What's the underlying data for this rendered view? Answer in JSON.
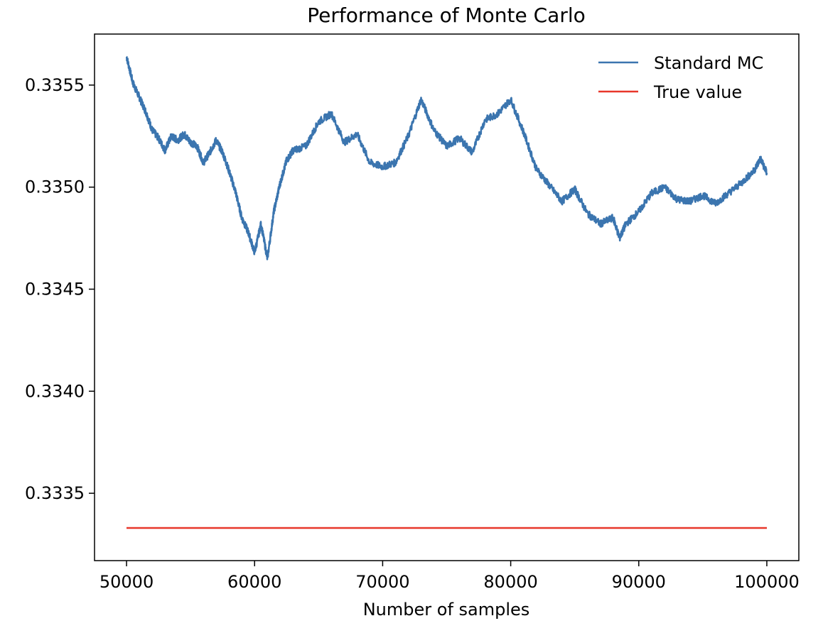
{
  "chart_data": {
    "type": "line",
    "title": "Performance of Monte Carlo",
    "xlabel": "Number of samples",
    "ylabel": "",
    "xlim": [
      47500,
      102500
    ],
    "ylim": [
      0.33317,
      0.33575
    ],
    "x_ticks": [
      50000,
      60000,
      70000,
      80000,
      90000,
      100000
    ],
    "x_tick_labels": [
      "50000",
      "60000",
      "70000",
      "80000",
      "90000",
      "100000"
    ],
    "y_ticks": [
      0.3335,
      0.334,
      0.3345,
      0.335,
      0.3355
    ],
    "y_tick_labels": [
      "0.3335",
      "0.3340",
      "0.3345",
      "0.3350",
      "0.3355"
    ],
    "grid": false,
    "legend": {
      "placement": "top-right",
      "entries": [
        "Standard MC",
        "True value"
      ]
    },
    "series": [
      {
        "name": "Standard MC",
        "color": "#3b75af",
        "x": [
          50000,
          50500,
          51000,
          51500,
          52000,
          52500,
          53000,
          53500,
          54000,
          54500,
          55000,
          55500,
          56000,
          56500,
          57000,
          57500,
          58000,
          58500,
          59000,
          59500,
          60000,
          60500,
          61000,
          61500,
          62000,
          62500,
          63000,
          64000,
          65000,
          66000,
          67000,
          68000,
          69000,
          70000,
          71000,
          72000,
          73000,
          74000,
          75000,
          76000,
          77000,
          78000,
          79000,
          80000,
          81000,
          82000,
          83000,
          84000,
          85000,
          86000,
          87000,
          88000,
          88500,
          89000,
          90000,
          91000,
          92000,
          93000,
          94000,
          95000,
          96000,
          97000,
          98000,
          99000,
          99500,
          100000
        ],
        "values": [
          0.33564,
          0.33551,
          0.33544,
          0.33537,
          0.33528,
          0.33524,
          0.33518,
          0.33525,
          0.33523,
          0.33526,
          0.33522,
          0.3352,
          0.33512,
          0.33517,
          0.33523,
          0.33517,
          0.33508,
          0.33498,
          0.33485,
          0.33478,
          0.33468,
          0.33482,
          0.33465,
          0.33488,
          0.33502,
          0.33513,
          0.33518,
          0.3352,
          0.33532,
          0.33536,
          0.33522,
          0.33526,
          0.33512,
          0.3351,
          0.33512,
          0.33525,
          0.33543,
          0.33528,
          0.3352,
          0.33524,
          0.33517,
          0.33533,
          0.33536,
          0.33543,
          0.33527,
          0.33509,
          0.33501,
          0.33493,
          0.33499,
          0.33487,
          0.33482,
          0.33485,
          0.33475,
          0.33482,
          0.33488,
          0.33497,
          0.335,
          0.33494,
          0.33493,
          0.33496,
          0.33492,
          0.33497,
          0.33502,
          0.33508,
          0.33514,
          0.33507
        ]
      },
      {
        "name": "True value",
        "color": "#e8372a",
        "x": [
          50000,
          100000
        ],
        "values": [
          0.33333,
          0.33333
        ]
      }
    ]
  }
}
